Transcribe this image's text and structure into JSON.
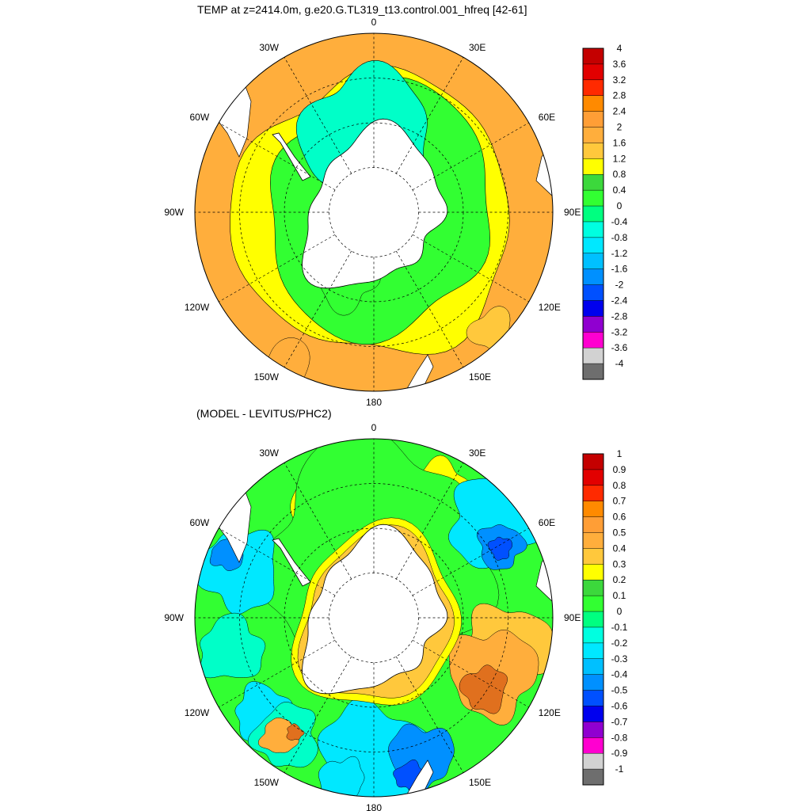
{
  "top_panel": {
    "title": "TEMP at z=2414.0m, g.e20.G.TL319_t13.control.001_hfreq [42-61]",
    "lon_labels": [
      "0",
      "30E",
      "60E",
      "90E",
      "120E",
      "150E",
      "180",
      "150W",
      "120W",
      "90W",
      "60W",
      "30W"
    ],
    "colorbar": {
      "labels": [
        "4",
        "3.6",
        "3.2",
        "2.8",
        "2.4",
        "2",
        "1.6",
        "1.2",
        "0.8",
        "0.4",
        "0",
        "-0.4",
        "-0.8",
        "-1.2",
        "-1.6",
        "-2",
        "-2.4",
        "-2.8",
        "-3.2",
        "-3.6",
        "-4"
      ],
      "colors": [
        "#c40000",
        "#e20000",
        "#ff2a00",
        "#ff8a00",
        "#ff9e36",
        "#ffae3c",
        "#ffc83c",
        "#ffff00",
        "#3cd83c",
        "#32ff32",
        "#00ff80",
        "#00ffe0",
        "#00e8ff",
        "#00c0ff",
        "#0090ff",
        "#0050ff",
        "#0000ee",
        "#9000d0",
        "#ff00d0",
        "#d2d2d2",
        "#6e6e6e"
      ]
    }
  },
  "bottom_panel": {
    "title": "(MODEL - LEVITUS/PHC2)",
    "lon_labels": [
      "0",
      "30E",
      "60E",
      "90E",
      "120E",
      "150E",
      "180",
      "150W",
      "120W",
      "90W",
      "60W",
      "30W"
    ],
    "colorbar": {
      "labels": [
        "1",
        "0.9",
        "0.8",
        "0.7",
        "0.6",
        "0.5",
        "0.4",
        "0.3",
        "0.2",
        "0.1",
        "0",
        "-0.1",
        "-0.2",
        "-0.3",
        "-0.4",
        "-0.5",
        "-0.6",
        "-0.7",
        "-0.8",
        "-0.9",
        "-1"
      ],
      "colors": [
        "#c40000",
        "#e20000",
        "#ff2a00",
        "#ff8a00",
        "#ff9e36",
        "#ffae3c",
        "#ffc83c",
        "#ffff00",
        "#3cd83c",
        "#32ff32",
        "#00ff80",
        "#00ffe0",
        "#00e8ff",
        "#00c0ff",
        "#0090ff",
        "#0050ff",
        "#0000ee",
        "#9000d0",
        "#ff00d0",
        "#d2d2d2",
        "#6e6e6e"
      ]
    }
  },
  "palette": {
    "land": "#ffffff",
    "outline": "#000000",
    "orange": "#ffae3c",
    "yellow": "#ffff00",
    "green": "#32ff32",
    "teal": "#00ffc8",
    "cyan": "#00e8ff",
    "light_orange": "#ffc83c",
    "dark_orange": "#e0701e",
    "blue": "#0090ff",
    "dark_blue": "#0050ff",
    "brown": "#c04000"
  }
}
